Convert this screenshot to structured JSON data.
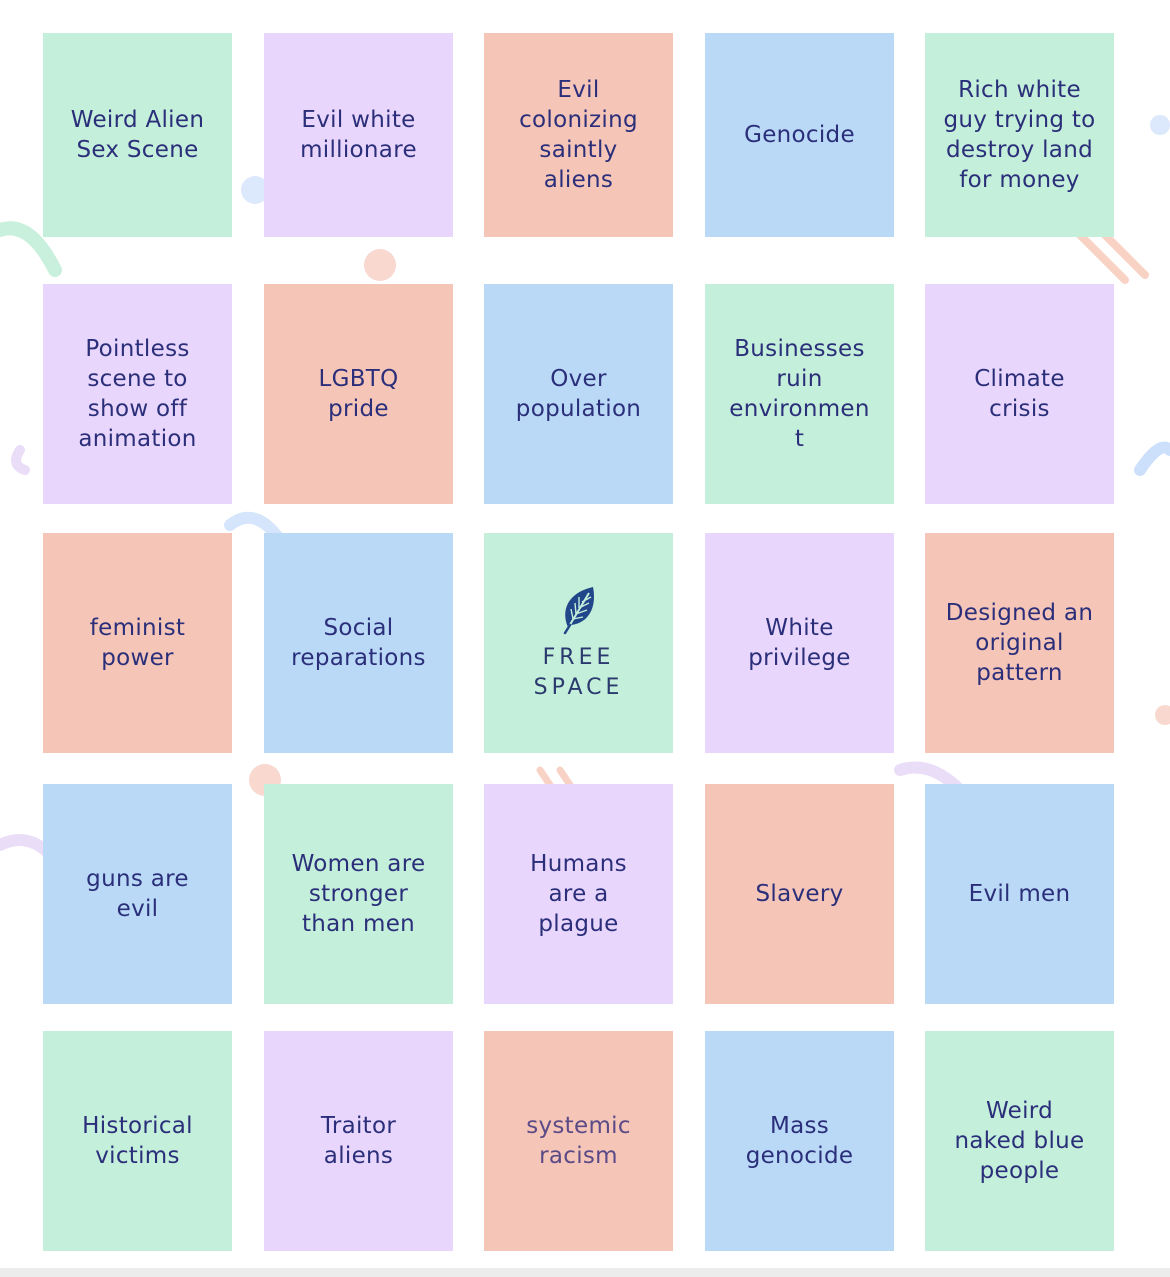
{
  "colors": {
    "green": "#c4efda",
    "purple": "#e9d6fc",
    "salmon": "#f5c5b8",
    "blue": "#bad9f7",
    "text": "#2b2f7a",
    "leaf": "#22468a"
  },
  "bingo": {
    "free_icon": "leaf-icon",
    "rows": [
      [
        {
          "label": "Weird Alien\nSex Scene",
          "color": "green"
        },
        {
          "label": "Evil white\nmillionare",
          "color": "purple"
        },
        {
          "label": "Evil\ncolonizing\nsaintly\naliens",
          "color": "salmon"
        },
        {
          "label": "Genocide",
          "color": "blue"
        },
        {
          "label": "Rich white\nguy trying to\ndestroy land\nfor money",
          "color": "green"
        }
      ],
      [
        {
          "label": "Pointless\nscene to\nshow off\nanimation",
          "color": "purple"
        },
        {
          "label": "LGBTQ\npride",
          "color": "salmon"
        },
        {
          "label": "Over\npopulation",
          "color": "blue"
        },
        {
          "label": "Businesses\nruin\nenvironmen\nt",
          "color": "green"
        },
        {
          "label": "Climate\ncrisis",
          "color": "purple"
        }
      ],
      [
        {
          "label": "feminist\npower",
          "color": "salmon"
        },
        {
          "label": "Social\nreparations",
          "color": "blue"
        },
        {
          "label": "FREE\nSPACE",
          "color": "green",
          "free": true
        },
        {
          "label": "White\nprivilege",
          "color": "purple"
        },
        {
          "label": "Designed an\noriginal\npattern",
          "color": "salmon"
        }
      ],
      [
        {
          "label": "guns are\nevil",
          "color": "blue"
        },
        {
          "label": "Women are\nstronger\nthan men",
          "color": "green"
        },
        {
          "label": "Humans\nare a\nplague",
          "color": "purple"
        },
        {
          "label": "Slavery",
          "color": "salmon"
        },
        {
          "label": "Evil men",
          "color": "blue"
        }
      ],
      [
        {
          "label": "Historical\nvictims",
          "color": "green"
        },
        {
          "label": "Traitor\naliens",
          "color": "purple"
        },
        {
          "label": "systemic\nracism",
          "color": "salmon",
          "light": true
        },
        {
          "label": "Mass\ngenocide",
          "color": "blue"
        },
        {
          "label": "Weird\nnaked blue\npeople",
          "color": "green"
        }
      ]
    ]
  }
}
